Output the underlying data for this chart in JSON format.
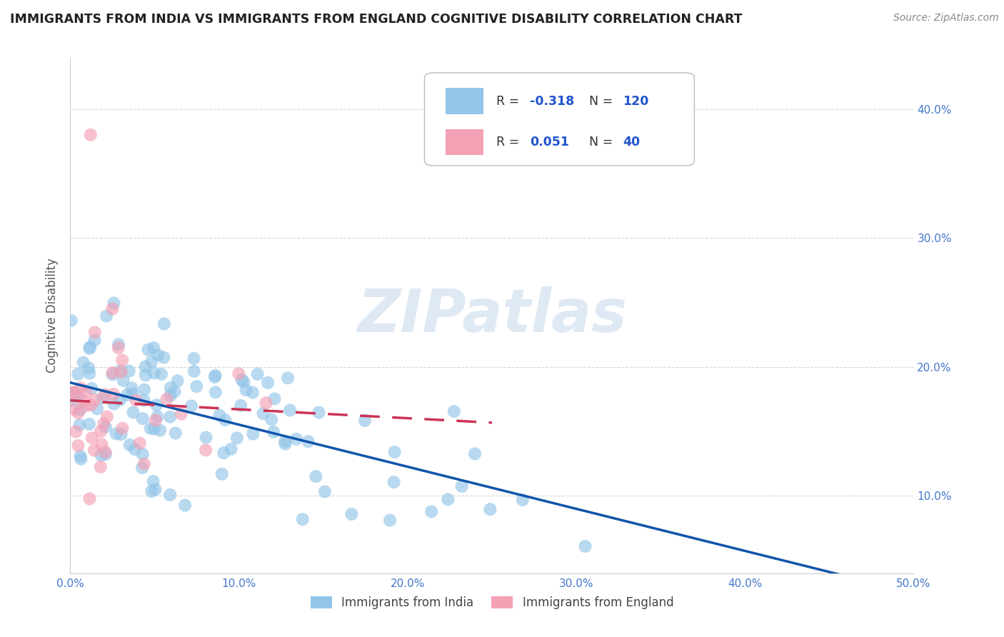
{
  "title": "IMMIGRANTS FROM INDIA VS IMMIGRANTS FROM ENGLAND COGNITIVE DISABILITY CORRELATION CHART",
  "source_text": "Source: ZipAtlas.com",
  "ylabel": "Cognitive Disability",
  "xlim": [
    0.0,
    0.5
  ],
  "ylim": [
    0.04,
    0.44
  ],
  "x_ticks": [
    0.0,
    0.1,
    0.2,
    0.3,
    0.4,
    0.5
  ],
  "x_tick_labels": [
    "0.0%",
    "10.0%",
    "20.0%",
    "30.0%",
    "40.0%",
    "50.0%"
  ],
  "y_ticks": [
    0.1,
    0.2,
    0.3,
    0.4
  ],
  "y_tick_labels": [
    "10.0%",
    "20.0%",
    "30.0%",
    "40.0%"
  ],
  "india_color": "#92C5E8",
  "india_line_color": "#1155AA",
  "england_color": "#F4A0B5",
  "england_line_color": "#CC3355",
  "india_R": -0.318,
  "india_N": 120,
  "england_R": 0.051,
  "england_N": 40,
  "legend_label_india": "Immigrants from India",
  "legend_label_england": "Immigrants from England",
  "watermark": "ZIPatlas",
  "background_color": "#ffffff",
  "grid_color": "#cccccc",
  "tick_color": "#4477CC",
  "title_color": "#222222",
  "source_color": "#888888"
}
